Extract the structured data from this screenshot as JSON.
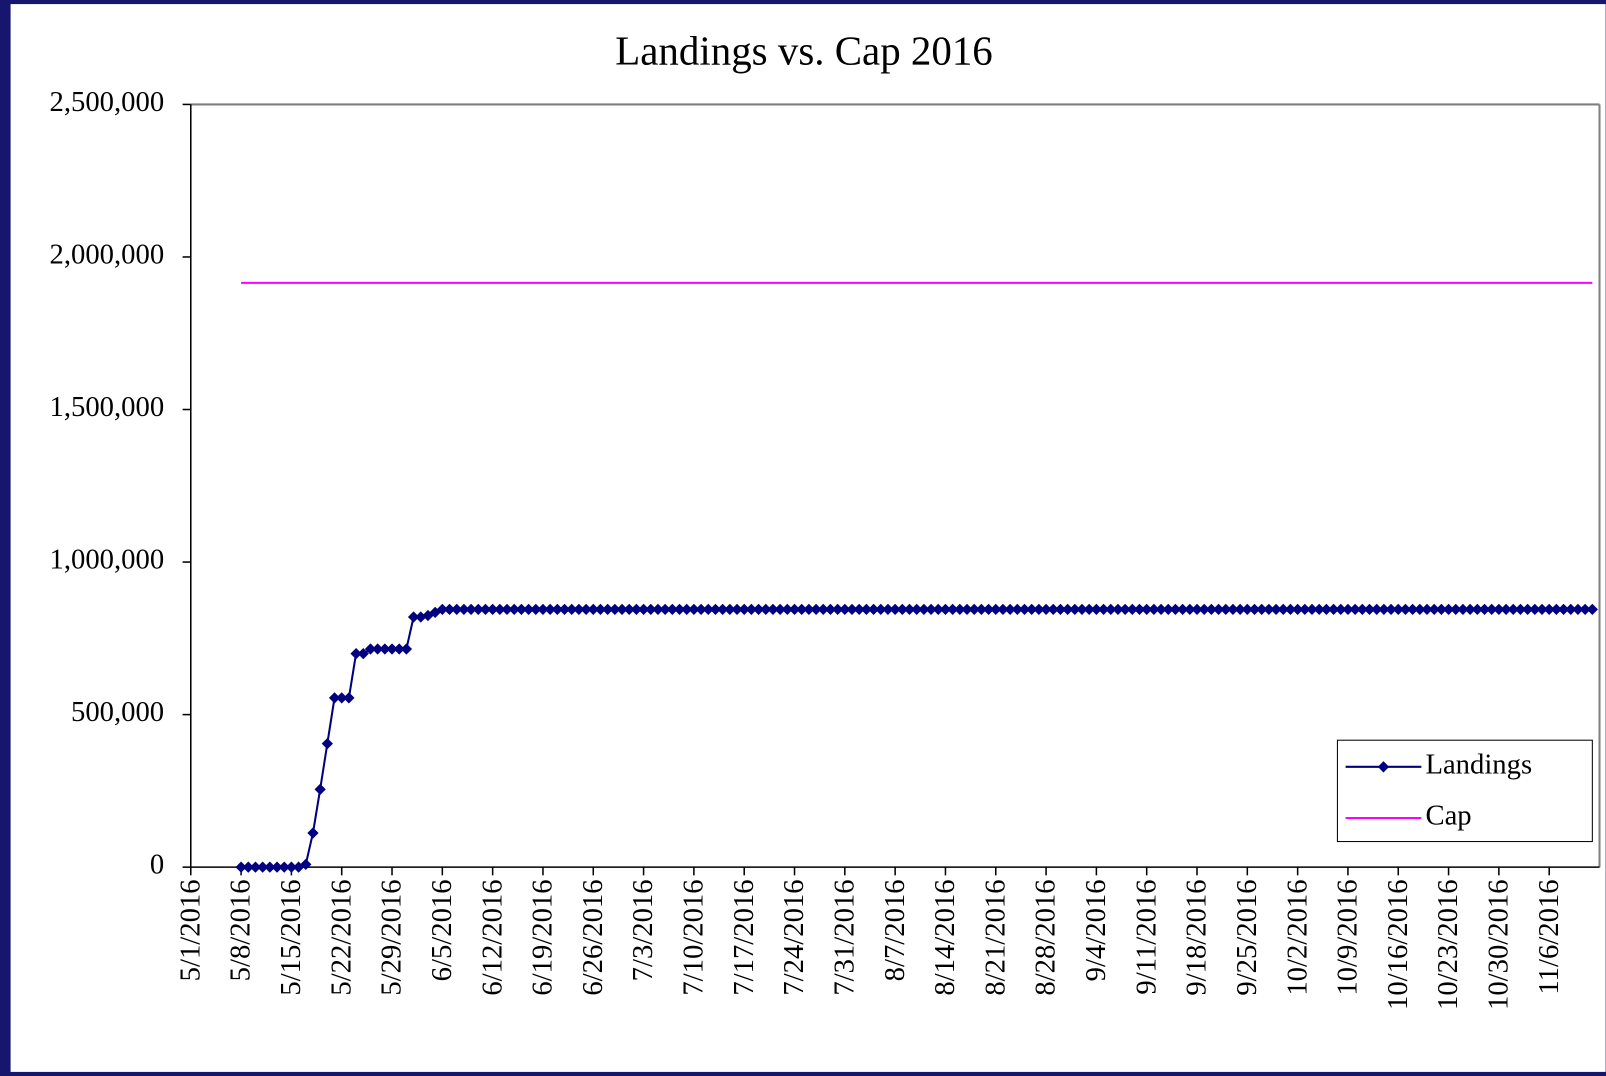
{
  "chart_data": {
    "type": "line",
    "title": "Landings vs. Cap 2016",
    "x": [
      "5/8/2016",
      "5/9/2016",
      "5/10/2016",
      "5/11/2016",
      "5/12/2016",
      "5/13/2016",
      "5/14/2016",
      "5/15/2016",
      "5/16/2016",
      "5/17/2016",
      "5/18/2016",
      "5/19/2016",
      "5/20/2016",
      "5/21/2016",
      "5/22/2016",
      "5/23/2016",
      "5/24/2016",
      "5/25/2016",
      "5/26/2016",
      "5/27/2016",
      "5/28/2016",
      "5/29/2016",
      "5/30/2016",
      "5/31/2016",
      "6/1/2016",
      "6/2/2016",
      "6/3/2016",
      "6/4/2016",
      "6/5/2016",
      "6/6/2016",
      "6/7/2016",
      "6/8/2016",
      "6/9/2016",
      "6/10/2016",
      "6/11/2016",
      "6/12/2016",
      "6/13/2016",
      "6/14/2016",
      "6/15/2016",
      "6/16/2016",
      "6/17/2016",
      "6/18/2016",
      "6/19/2016",
      "6/20/2016",
      "6/21/2016",
      "6/22/2016",
      "6/23/2016",
      "6/24/2016",
      "6/25/2016",
      "6/26/2016",
      "6/27/2016",
      "6/28/2016",
      "6/29/2016",
      "6/30/2016",
      "7/1/2016",
      "7/2/2016",
      "7/3/2016",
      "7/4/2016",
      "7/5/2016",
      "7/6/2016",
      "7/7/2016",
      "7/8/2016",
      "7/9/2016",
      "7/10/2016",
      "7/11/2016",
      "7/12/2016",
      "7/13/2016",
      "7/14/2016",
      "7/15/2016",
      "7/16/2016",
      "7/17/2016",
      "7/18/2016",
      "7/19/2016",
      "7/20/2016",
      "7/21/2016",
      "7/22/2016",
      "7/23/2016",
      "7/24/2016",
      "7/25/2016",
      "7/26/2016",
      "7/27/2016",
      "7/28/2016",
      "7/29/2016",
      "7/30/2016",
      "7/31/2016",
      "8/1/2016",
      "8/2/2016",
      "8/3/2016",
      "8/4/2016",
      "8/5/2016",
      "8/6/2016",
      "8/7/2016",
      "8/8/2016",
      "8/9/2016",
      "8/10/2016",
      "8/11/2016",
      "8/12/2016",
      "8/13/2016",
      "8/14/2016",
      "8/15/2016",
      "8/16/2016",
      "8/17/2016",
      "8/18/2016",
      "8/19/2016",
      "8/20/2016",
      "8/21/2016",
      "8/22/2016",
      "8/23/2016",
      "8/24/2016",
      "8/25/2016",
      "8/26/2016",
      "8/27/2016",
      "8/28/2016",
      "8/29/2016",
      "8/30/2016",
      "8/31/2016",
      "9/1/2016",
      "9/2/2016",
      "9/3/2016",
      "9/4/2016",
      "9/5/2016",
      "9/6/2016",
      "9/7/2016",
      "9/8/2016",
      "9/9/2016",
      "9/10/2016",
      "9/11/2016",
      "9/12/2016",
      "9/13/2016",
      "9/14/2016",
      "9/15/2016",
      "9/16/2016",
      "9/17/2016",
      "9/18/2016",
      "9/19/2016",
      "9/20/2016",
      "9/21/2016",
      "9/22/2016",
      "9/23/2016",
      "9/24/2016",
      "9/25/2016",
      "9/26/2016",
      "9/27/2016",
      "9/28/2016",
      "9/29/2016",
      "9/30/2016",
      "10/1/2016",
      "10/2/2016",
      "10/3/2016",
      "10/4/2016",
      "10/5/2016",
      "10/6/2016",
      "10/7/2016",
      "10/8/2016",
      "10/9/2016",
      "10/10/2016",
      "10/11/2016",
      "10/12/2016",
      "10/13/2016",
      "10/14/2016",
      "10/15/2016",
      "10/16/2016",
      "10/17/2016",
      "10/18/2016",
      "10/19/2016",
      "10/20/2016",
      "10/21/2016",
      "10/22/2016",
      "10/23/2016",
      "10/24/2016",
      "10/25/2016",
      "10/26/2016",
      "10/27/2016",
      "10/28/2016",
      "10/29/2016",
      "10/30/2016",
      "10/31/2016",
      "11/1/2016",
      "11/2/2016",
      "11/3/2016",
      "11/4/2016",
      "11/5/2016",
      "11/6/2016",
      "11/7/2016",
      "11/8/2016",
      "11/9/2016",
      "11/10/2016",
      "11/11/2016",
      "11/12/2016"
    ],
    "series": [
      {
        "name": "Landings",
        "color": "#000080",
        "marker": "diamond",
        "values": [
          0,
          0,
          0,
          0,
          0,
          0,
          0,
          0,
          0,
          9000,
          112000,
          255000,
          405000,
          555000,
          555000,
          555000,
          700000,
          700000,
          715000,
          715000,
          715000,
          715000,
          715000,
          715000,
          820000,
          820000,
          825000,
          835000,
          845000,
          845000,
          845000,
          845000,
          845000,
          845000,
          845000,
          845000,
          845000,
          845000,
          845000,
          845000,
          845000,
          845000,
          845000,
          845000,
          845000,
          845000,
          845000,
          845000,
          845000,
          845000,
          845000,
          845000,
          845000,
          845000,
          845000,
          845000,
          845000,
          845000,
          845000,
          845000,
          845000,
          845000,
          845000,
          845000,
          845000,
          845000,
          845000,
          845000,
          845000,
          845000,
          845000,
          845000,
          845000,
          845000,
          845000,
          845000,
          845000,
          845000,
          845000,
          845000,
          845000,
          845000,
          845000,
          845000,
          845000,
          845000,
          845000,
          845000,
          845000,
          845000,
          845000,
          845000,
          845000,
          845000,
          845000,
          845000,
          845000,
          845000,
          845000,
          845000,
          845000,
          845000,
          845000,
          845000,
          845000,
          845000,
          845000,
          845000,
          845000,
          845000,
          845000,
          845000,
          845000,
          845000,
          845000,
          845000,
          845000,
          845000,
          845000,
          845000,
          845000,
          845000,
          845000,
          845000,
          845000,
          845000,
          845000,
          845000,
          845000,
          845000,
          845000,
          845000,
          845000,
          845000,
          845000,
          845000,
          845000,
          845000,
          845000,
          845000,
          845000,
          845000,
          845000,
          845000,
          845000,
          845000,
          845000,
          845000,
          845000,
          845000,
          845000,
          845000,
          845000,
          845000,
          845000,
          845000,
          845000,
          845000,
          845000,
          845000,
          845000,
          845000,
          845000,
          845000,
          845000,
          845000,
          845000,
          845000,
          845000,
          845000,
          845000,
          845000,
          845000,
          845000,
          845000,
          845000,
          845000,
          845000,
          845000,
          845000,
          845000,
          845000,
          845000,
          845000,
          845000,
          845000,
          845000,
          845000,
          845000
        ]
      },
      {
        "name": "Cap",
        "color": "#ff00ff",
        "marker": "none",
        "values": [
          1915000,
          1915000,
          1915000,
          1915000,
          1915000,
          1915000,
          1915000,
          1915000,
          1915000,
          1915000,
          1915000,
          1915000,
          1915000,
          1915000,
          1915000,
          1915000,
          1915000,
          1915000,
          1915000,
          1915000,
          1915000,
          1915000,
          1915000,
          1915000,
          1915000,
          1915000,
          1915000,
          1915000,
          1915000,
          1915000,
          1915000,
          1915000,
          1915000,
          1915000,
          1915000,
          1915000,
          1915000,
          1915000,
          1915000,
          1915000,
          1915000,
          1915000,
          1915000,
          1915000,
          1915000,
          1915000,
          1915000,
          1915000,
          1915000,
          1915000,
          1915000,
          1915000,
          1915000,
          1915000,
          1915000,
          1915000,
          1915000,
          1915000,
          1915000,
          1915000,
          1915000,
          1915000,
          1915000,
          1915000,
          1915000,
          1915000,
          1915000,
          1915000,
          1915000,
          1915000,
          1915000,
          1915000,
          1915000,
          1915000,
          1915000,
          1915000,
          1915000,
          1915000,
          1915000,
          1915000,
          1915000,
          1915000,
          1915000,
          1915000,
          1915000,
          1915000,
          1915000,
          1915000,
          1915000,
          1915000,
          1915000,
          1915000,
          1915000,
          1915000,
          1915000,
          1915000,
          1915000,
          1915000,
          1915000,
          1915000,
          1915000,
          1915000,
          1915000,
          1915000,
          1915000,
          1915000,
          1915000,
          1915000,
          1915000,
          1915000,
          1915000,
          1915000,
          1915000,
          1915000,
          1915000,
          1915000,
          1915000,
          1915000,
          1915000,
          1915000,
          1915000,
          1915000,
          1915000,
          1915000,
          1915000,
          1915000,
          1915000,
          1915000,
          1915000,
          1915000,
          1915000,
          1915000,
          1915000,
          1915000,
          1915000,
          1915000,
          1915000,
          1915000,
          1915000,
          1915000,
          1915000,
          1915000,
          1915000,
          1915000,
          1915000,
          1915000,
          1915000,
          1915000,
          1915000,
          1915000,
          1915000,
          1915000,
          1915000,
          1915000,
          1915000,
          1915000,
          1915000,
          1915000,
          1915000,
          1915000,
          1915000,
          1915000,
          1915000,
          1915000,
          1915000,
          1915000,
          1915000,
          1915000,
          1915000,
          1915000,
          1915000,
          1915000,
          1915000,
          1915000,
          1915000,
          1915000,
          1915000,
          1915000,
          1915000,
          1915000,
          1915000,
          1915000,
          1915000,
          1915000,
          1915000,
          1915000,
          1915000,
          1915000,
          1915000
        ]
      }
    ],
    "xlim": [
      "5/1/2016",
      "11/13/2016"
    ],
    "xticks": [
      "5/1/2016",
      "5/8/2016",
      "5/15/2016",
      "5/22/2016",
      "5/29/2016",
      "6/5/2016",
      "6/12/2016",
      "6/19/2016",
      "6/26/2016",
      "7/3/2016",
      "7/10/2016",
      "7/17/2016",
      "7/24/2016",
      "7/31/2016",
      "8/7/2016",
      "8/14/2016",
      "8/21/2016",
      "8/28/2016",
      "9/4/2016",
      "9/11/2016",
      "9/18/2016",
      "9/25/2016",
      "10/2/2016",
      "10/9/2016",
      "10/16/2016",
      "10/23/2016",
      "10/30/2016",
      "11/6/2016"
    ],
    "ylim": [
      0,
      2500000
    ],
    "yticks": [
      0,
      {
        "value": 500000,
        "label": "500,000"
      },
      {
        "value": 1000000,
        "label": "1,000,000"
      },
      {
        "value": 1500000,
        "label": "1,500,000"
      },
      {
        "value": 2000000,
        "label": "2,000,000"
      },
      {
        "value": 2500000,
        "label": "2,500,000"
      }
    ],
    "grid": false,
    "legend": "lower right"
  }
}
